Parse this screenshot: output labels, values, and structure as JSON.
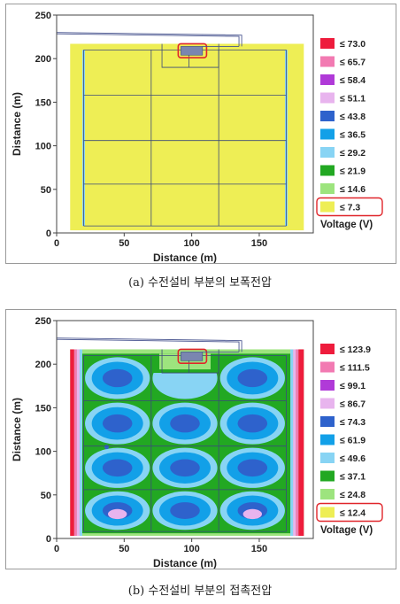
{
  "chart_data": [
    {
      "type": "heatmap",
      "xlabel": "Distance (m)",
      "ylabel": "Distance (m)",
      "xlim": [
        0,
        190
      ],
      "ylim": [
        0,
        250
      ],
      "x_ticks": [
        0,
        50,
        100,
        150
      ],
      "y_ticks": [
        0,
        50,
        100,
        150,
        200,
        250
      ],
      "legend_title": "Voltage (V)",
      "legend_placement": "right",
      "highlighted_legend_level": "≤ 7.3",
      "levels": [
        {
          "label": "≤ 73.0",
          "color": "#ee1c3c"
        },
        {
          "label": "≤ 65.7",
          "color": "#f27ab2"
        },
        {
          "label": "≤ 58.4",
          "color": "#b03ad8"
        },
        {
          "label": "≤ 51.1",
          "color": "#e8b4ee"
        },
        {
          "label": "≤ 43.8",
          "color": "#2e62cc"
        },
        {
          "label": "≤ 36.5",
          "color": "#12a0e8"
        },
        {
          "label": "≤ 29.2",
          "color": "#88d4f4"
        },
        {
          "label": "≤ 21.9",
          "color": "#22a822"
        },
        {
          "label": "≤ 14.6",
          "color": "#9de47e"
        },
        {
          "label": "≤ 7.3",
          "color": "#eeee55"
        }
      ]
    },
    {
      "type": "heatmap",
      "xlabel": "Distance (m)",
      "ylabel": "Distance (m)",
      "xlim": [
        0,
        190
      ],
      "ylim": [
        0,
        250
      ],
      "x_ticks": [
        0,
        50,
        100,
        150
      ],
      "y_ticks": [
        0,
        50,
        100,
        150,
        200,
        250
      ],
      "legend_title": "Voltage (V)",
      "legend_placement": "right",
      "highlighted_legend_level": "≤ 12.4",
      "levels": [
        {
          "label": "≤ 123.9",
          "color": "#ee1c3c"
        },
        {
          "label": "≤ 111.5",
          "color": "#f27ab2"
        },
        {
          "label": "≤ 99.1",
          "color": "#b03ad8"
        },
        {
          "label": "≤ 86.7",
          "color": "#e8b4ee"
        },
        {
          "label": "≤ 74.3",
          "color": "#2e62cc"
        },
        {
          "label": "≤ 61.9",
          "color": "#12a0e8"
        },
        {
          "label": "≤ 49.6",
          "color": "#88d4f4"
        },
        {
          "label": "≤ 37.1",
          "color": "#22a822"
        },
        {
          "label": "≤ 24.8",
          "color": "#9de47e"
        },
        {
          "label": "≤ 12.4",
          "color": "#eeee55"
        }
      ]
    }
  ],
  "captions": {
    "a": "(a) 수전설비 부분의 보폭전압",
    "b": "(b) 수전설비 부분의 접촉전압"
  }
}
